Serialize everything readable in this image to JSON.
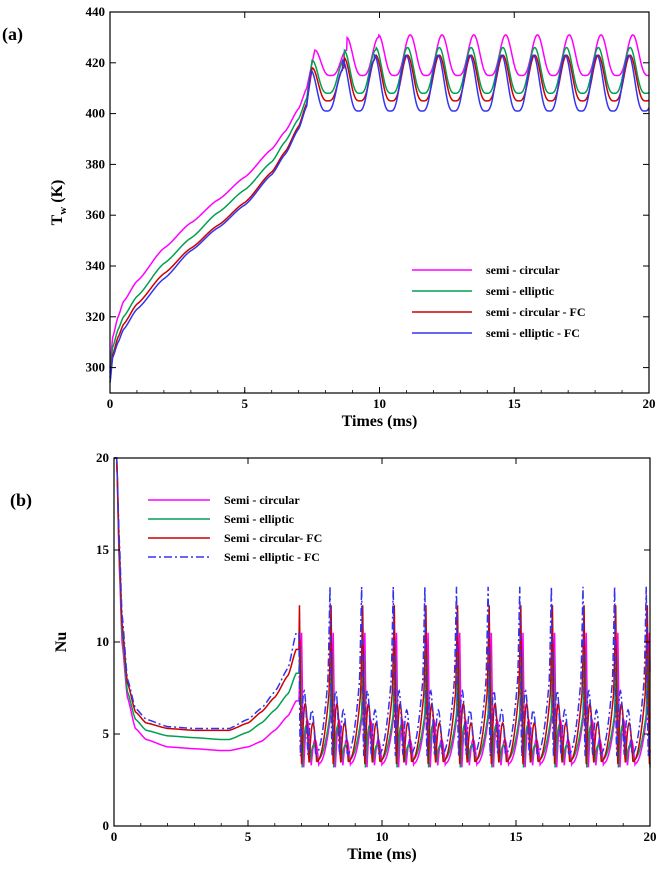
{
  "chart_data": [
    {
      "panel": "(a)",
      "type": "line",
      "xlabel": "Times (ms)",
      "ylabel": "T",
      "ylabel_sub": "w",
      "ylabel_unit": " (K)",
      "xlim": [
        0,
        20
      ],
      "ylim": [
        290,
        440
      ],
      "xticks": [
        "0",
        "5",
        "10",
        "15",
        "20"
      ],
      "yticks": [
        "300",
        "320",
        "340",
        "360",
        "380",
        "400",
        "420",
        "440"
      ],
      "legend_position": "lower-right",
      "series": [
        {
          "name": "semi - circular",
          "color": "#ff00ff",
          "dash": "",
          "x": [
            0,
            0.1,
            0.3,
            0.5,
            1,
            2,
            3,
            4,
            5,
            6,
            6.5,
            7,
            7.3
          ],
          "y": [
            300,
            312,
            320,
            326,
            334,
            347,
            357,
            366,
            375,
            386,
            393,
            402,
            410
          ],
          "osc": {
            "start": 7.3,
            "period": 1.18,
            "first_peak": 7.6,
            "max": 431,
            "min": 415,
            "peak_ramp": [
              425,
              430
            ]
          }
        },
        {
          "name": "semi - elliptic",
          "color": "#00a050",
          "dash": "",
          "x": [
            0,
            0.1,
            0.3,
            0.5,
            1,
            2,
            3,
            4,
            5,
            6,
            6.5,
            7,
            7.3
          ],
          "y": [
            298,
            308,
            315,
            320,
            328,
            341,
            351,
            361,
            370,
            381,
            389,
            398,
            406
          ],
          "osc": {
            "start": 7.3,
            "period": 1.18,
            "first_peak": 7.5,
            "max": 426,
            "min": 408,
            "peak_ramp": [
              421,
              425
            ]
          }
        },
        {
          "name": "semi - circular - FC",
          "color": "#cc0000",
          "dash": "",
          "x": [
            0,
            0.1,
            0.3,
            0.5,
            1,
            2,
            3,
            4,
            5,
            6,
            6.5,
            7,
            7.3
          ],
          "y": [
            296,
            305,
            312,
            317,
            325,
            337,
            347,
            356,
            365,
            377,
            385,
            395,
            404
          ],
          "osc": {
            "start": 7.3,
            "period": 1.18,
            "first_peak": 7.5,
            "max": 423,
            "min": 405,
            "peak_ramp": [
              418,
              422
            ]
          }
        },
        {
          "name": "semi - elliptic - FC",
          "color": "#3333ee",
          "dash": "",
          "x": [
            0,
            0.1,
            0.3,
            0.5,
            1,
            2,
            3,
            4,
            5,
            6,
            6.5,
            7,
            7.3
          ],
          "y": [
            294,
            304,
            310,
            315,
            323,
            335,
            346,
            355,
            364,
            376,
            384,
            394,
            403
          ],
          "osc": {
            "start": 7.3,
            "period": 1.18,
            "first_peak": 7.45,
            "max": 423,
            "min": 401,
            "peak_ramp": [
              417,
              421
            ]
          }
        }
      ]
    },
    {
      "panel": "(b)",
      "type": "line",
      "xlabel": "Time (ms)",
      "ylabel": "Nu",
      "xlim": [
        0,
        20
      ],
      "ylim": [
        0,
        20
      ],
      "xticks": [
        "0",
        "5",
        "10",
        "15",
        "20"
      ],
      "yticks": [
        "0",
        "5",
        "10",
        "15",
        "20"
      ],
      "legend_position": "upper-left",
      "series": [
        {
          "name": "Semi - circular",
          "color": "#ff00ff",
          "dash": "",
          "x": [
            0.1,
            0.2,
            0.3,
            0.5,
            0.8,
            1.2,
            2,
            3,
            4,
            4.3,
            5,
            5.5,
            6,
            6.5,
            6.8
          ],
          "y": [
            20,
            14,
            10,
            7,
            5.3,
            4.7,
            4.3,
            4.2,
            4.1,
            4.1,
            4.3,
            4.6,
            5.2,
            6,
            6.8
          ],
          "osc": {
            "start": 6.9,
            "period": 1.18,
            "first_peak": 7.0,
            "max": 10.5,
            "min": 2.9,
            "mid": 5.6
          }
        },
        {
          "name": "Semi - elliptic",
          "color": "#00a050",
          "dash": "",
          "x": [
            0.1,
            0.2,
            0.3,
            0.5,
            0.8,
            1.2,
            2,
            3,
            4,
            4.3,
            5,
            5.5,
            6,
            6.5,
            6.8
          ],
          "y": [
            20,
            14.5,
            10.5,
            7.3,
            5.8,
            5.2,
            4.9,
            4.8,
            4.7,
            4.7,
            5.1,
            5.6,
            6.3,
            7.2,
            8.3
          ],
          "osc": {
            "start": 6.9,
            "period": 1.18,
            "first_peak": 6.95,
            "max": 10.2,
            "min": 3.1,
            "mid": 5.3
          }
        },
        {
          "name": "Semi - circular- FC",
          "color": "#cc0000",
          "dash": "",
          "x": [
            0.1,
            0.2,
            0.3,
            0.5,
            0.8,
            1.2,
            2,
            3,
            4,
            4.3,
            5,
            5.5,
            6,
            6.5,
            6.8
          ],
          "y": [
            20,
            15,
            11,
            7.8,
            6.2,
            5.6,
            5.3,
            5.2,
            5.2,
            5.2,
            5.6,
            6.2,
            7,
            8.2,
            9.6
          ],
          "osc": {
            "start": 6.9,
            "period": 1.18,
            "first_peak": 6.92,
            "max": 12.0,
            "min": 3.0,
            "mid": 6.5
          }
        },
        {
          "name": "Semi - elliptic - FC",
          "color": "#3333ee",
          "dash": "8,3,2,3",
          "x": [
            0.1,
            0.2,
            0.3,
            0.5,
            0.8,
            1.2,
            2,
            3,
            4,
            4.3,
            5,
            5.5,
            6,
            6.5,
            6.8
          ],
          "y": [
            20,
            15.5,
            11.5,
            8,
            6.4,
            5.8,
            5.4,
            5.3,
            5.3,
            5.3,
            5.8,
            6.4,
            7.3,
            8.6,
            10.5
          ],
          "osc": {
            "start": 6.9,
            "period": 1.18,
            "first_peak": 6.88,
            "max": 13.0,
            "min": 3.4,
            "mid": 7.2
          }
        }
      ]
    }
  ]
}
